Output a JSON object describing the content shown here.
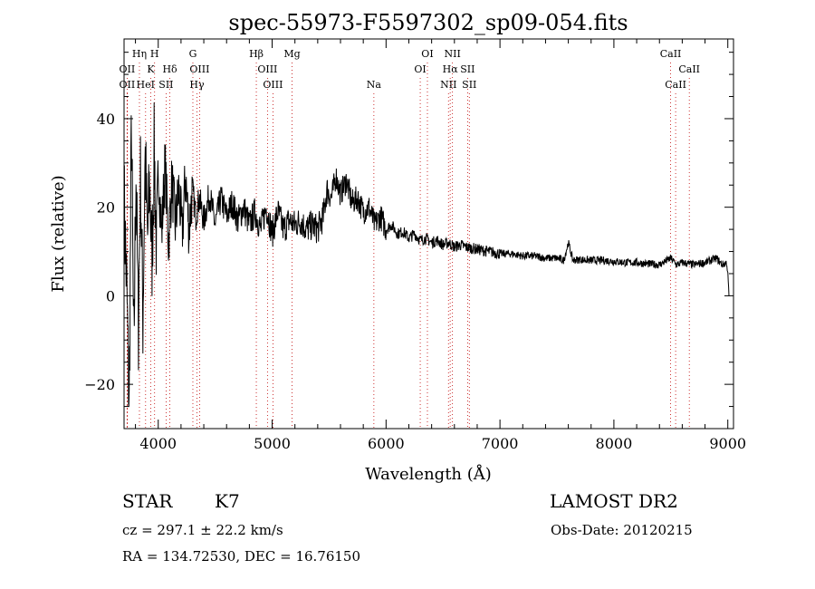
{
  "chart_data": {
    "type": "line",
    "title": "spec-55973-F5597302_sp09-054.fits",
    "xlabel": "Wavelength (Å)",
    "ylabel": "Flux (relative)",
    "xlim": [
      3700,
      9050
    ],
    "ylim": [
      -30,
      58
    ],
    "xticks": [
      4000,
      5000,
      6000,
      7000,
      8000,
      9000
    ],
    "yticks": [
      -20,
      0,
      20,
      40
    ],
    "grid": false,
    "series": [
      {
        "name": "",
        "x": [
          3700,
          3725,
          3745,
          3765,
          3785,
          3805,
          3825,
          3845,
          3865,
          3885,
          3905,
          3925,
          3945,
          3965,
          3985,
          4005,
          4030,
          4060,
          4090,
          4120,
          4150,
          4180,
          4210,
          4240,
          4270,
          4300,
          4330,
          4360,
          4400,
          4450,
          4500,
          4550,
          4600,
          4650,
          4700,
          4750,
          4800,
          4850,
          4900,
          4950,
          5000,
          5050,
          5100,
          5150,
          5200,
          5250,
          5300,
          5350,
          5400,
          5450,
          5480,
          5520,
          5560,
          5600,
          5650,
          5700,
          5750,
          5800,
          5850,
          5900,
          5950,
          6000,
          6050,
          6100,
          6150,
          6200,
          6250,
          6300,
          6350,
          6400,
          6450,
          6500,
          6550,
          6600,
          6650,
          6700,
          6800,
          6900,
          7000,
          7100,
          7200,
          7300,
          7400,
          7500,
          7560,
          7600,
          7640,
          7700,
          7800,
          7900,
          8000,
          8100,
          8200,
          8300,
          8400,
          8500,
          8550,
          8600,
          8700,
          8800,
          8850,
          8900,
          8950,
          8990,
          9000,
          9010
        ],
        "y": [
          22,
          0,
          -26,
          40,
          -15,
          30,
          -8,
          28,
          -5,
          32,
          12,
          25,
          8,
          33,
          10,
          28,
          14,
          30,
          12,
          26,
          16,
          24,
          14,
          27,
          15,
          24,
          18,
          22,
          17,
          23,
          16,
          22,
          18,
          21,
          17,
          20,
          16,
          19,
          15,
          20,
          14,
          19,
          15,
          17,
          16,
          17,
          15,
          16,
          15,
          18,
          24,
          22,
          27,
          23,
          26,
          21,
          22,
          19,
          20,
          16,
          18,
          15,
          16,
          14,
          14.5,
          13,
          14,
          12.5,
          13,
          12,
          12.5,
          11.5,
          12,
          11,
          11.5,
          11,
          10.5,
          10,
          9.5,
          9.5,
          9,
          9,
          8.5,
          8.5,
          8,
          12,
          8,
          8.2,
          8,
          8,
          7.8,
          7.5,
          7.5,
          7.2,
          7,
          8.5,
          7,
          7.5,
          7,
          7.5,
          8,
          8.5,
          7,
          7.5,
          5,
          0
        ]
      }
    ],
    "line_markers": [
      {
        "label": "OII",
        "wl": 3727,
        "row": 2
      },
      {
        "label": "OII",
        "wl": 3727,
        "row": 3
      },
      {
        "label": "Hη",
        "wl": 3835,
        "row": 1
      },
      {
        "label": "H",
        "wl": 3968,
        "row": 1
      },
      {
        "label": "K",
        "wl": 3934,
        "row": 2
      },
      {
        "label": "HeI",
        "wl": 3889,
        "row": 3
      },
      {
        "label": "SII",
        "wl": 4069,
        "row": 3
      },
      {
        "label": "Hδ",
        "wl": 4102,
        "row": 2
      },
      {
        "label": "G",
        "wl": 4304,
        "row": 1
      },
      {
        "label": "OIII",
        "wl": 4363,
        "row": 2
      },
      {
        "label": "Hγ",
        "wl": 4340,
        "row": 3
      },
      {
        "label": "Hβ",
        "wl": 4861,
        "row": 1
      },
      {
        "label": "OIII",
        "wl": 4959,
        "row": 2
      },
      {
        "label": "OIII",
        "wl": 5007,
        "row": 3
      },
      {
        "label": "Mg",
        "wl": 5175,
        "row": 1
      },
      {
        "label": "Na",
        "wl": 5893,
        "row": 3
      },
      {
        "label": "OI",
        "wl": 6363,
        "row": 1
      },
      {
        "label": "OI",
        "wl": 6300,
        "row": 2
      },
      {
        "label": "NII",
        "wl": 6583,
        "row": 1
      },
      {
        "label": "Hα",
        "wl": 6563,
        "row": 2
      },
      {
        "label": "SII",
        "wl": 6716,
        "row": 2
      },
      {
        "label": "NII",
        "wl": 6548,
        "row": 3
      },
      {
        "label": "SII",
        "wl": 6731,
        "row": 3
      },
      {
        "label": "CaII",
        "wl": 8498,
        "row": 1
      },
      {
        "label": "CaII",
        "wl": 8662,
        "row": 2
      },
      {
        "label": "CaII",
        "wl": 8542,
        "row": 3
      }
    ]
  },
  "info": {
    "object_class": "STAR",
    "subclass": "K7",
    "survey": "LAMOST DR2",
    "redshift": "cz = 297.1 ± 22.2 km/s",
    "obs_date": "Obs-Date: 20120215",
    "coords": "RA = 134.72530, DEC =  16.76150"
  }
}
